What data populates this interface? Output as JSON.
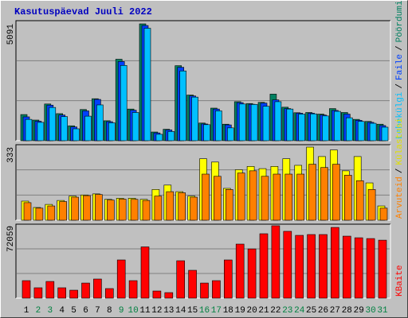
{
  "chart_data": {
    "type": "bar",
    "title": "Kasutuspäevad Juuli 2022",
    "categories": [
      "1",
      "2",
      "3",
      "4",
      "5",
      "6",
      "7",
      "8",
      "9",
      "10",
      "11",
      "12",
      "13",
      "14",
      "15",
      "16",
      "17",
      "18",
      "19",
      "20",
      "21",
      "22",
      "23",
      "24",
      "25",
      "26",
      "27",
      "28",
      "29",
      "30",
      "31"
    ],
    "category_colors": [
      "#000000",
      "#008040",
      "#008040",
      "#000000",
      "#000000",
      "#000000",
      "#000000",
      "#000000",
      "#008040",
      "#008040",
      "#000000",
      "#000000",
      "#000000",
      "#000000",
      "#000000",
      "#008040",
      "#008040",
      "#000000",
      "#000000",
      "#000000",
      "#000000",
      "#000000",
      "#008040",
      "#008040",
      "#000000",
      "#000000",
      "#000000",
      "#000000",
      "#000000",
      "#008040",
      "#008040"
    ],
    "legend_separator": "/",
    "panels": [
      {
        "ylim": [
          0,
          5230
        ],
        "yticks": [
          5091
        ],
        "series": [
          {
            "name": "Pöördumisi",
            "color": "#008060",
            "values": [
              1140,
              900,
              1600,
              1180,
              650,
              1360,
              1830,
              870,
              3550,
              1380,
              5091,
              380,
              500,
              3270,
              1990,
              770,
              1420,
              720,
              1700,
              1620,
              1670,
              2030,
              1460,
              1220,
              1230,
              1160,
              1400,
              1230,
              930,
              840,
              720
            ]
          },
          {
            "name": "Faile",
            "color": "#0040ff",
            "values": [
              1040,
              850,
              1550,
              1120,
              600,
              1300,
              1800,
              830,
              3450,
              1330,
              5020,
              340,
              470,
              3200,
              1950,
              730,
              1380,
              690,
              1660,
              1590,
              1640,
              1780,
              1400,
              1200,
              1200,
              1120,
              1320,
              1160,
              890,
              800,
              660
            ]
          },
          {
            "name": "Lehekülgi",
            "color": "#00c0ff",
            "values": [
              930,
              800,
              1450,
              1050,
              520,
              1070,
              1560,
              780,
              3280,
              1230,
              4900,
              280,
              400,
              3040,
              1900,
              700,
              1300,
              560,
              1600,
              1580,
              1500,
              1700,
              1380,
              1160,
              1170,
              1080,
              1280,
              1000,
              840,
              760,
              590
            ]
          }
        ]
      },
      {
        "ylim": [
          0,
          344
        ],
        "yticks": [
          333
        ],
        "series": [
          {
            "name": "Külastusi",
            "color": "#ffff00",
            "values": [
              87,
              58,
              72,
              90,
              110,
              115,
              120,
              95,
              100,
              100,
              95,
              140,
              160,
              130,
              110,
              280,
              265,
              145,
              230,
              245,
              235,
              245,
              280,
              250,
              333,
              290,
              320,
              225,
              290,
              170,
              65
            ]
          },
          {
            "name": "Arvuteid",
            "color": "#ff8000",
            "values": [
              80,
              55,
              65,
              85,
              105,
              112,
              117,
              92,
              96,
              95,
              90,
              110,
              130,
              125,
              105,
              210,
              200,
              140,
              215,
              225,
              200,
              210,
              210,
              210,
              255,
              240,
              255,
              205,
              180,
              140,
              55
            ]
          }
        ]
      },
      {
        "ylim": [
          0,
          73600
        ],
        "yticks": [
          72059
        ],
        "series": [
          {
            "name": "KBaite",
            "color": "#ff0000",
            "values": [
              17400,
              10300,
              16600,
              10300,
              7900,
              15000,
              19000,
              9500,
              38000,
              17400,
              51000,
              7100,
              5500,
              37200,
              27700,
              15000,
              17400,
              38000,
              53800,
              49000,
              64100,
              72059,
              66500,
              62500,
              63300,
              63300,
              70400,
              61700,
              60100,
              59300,
              57700
            ]
          }
        ]
      }
    ]
  }
}
